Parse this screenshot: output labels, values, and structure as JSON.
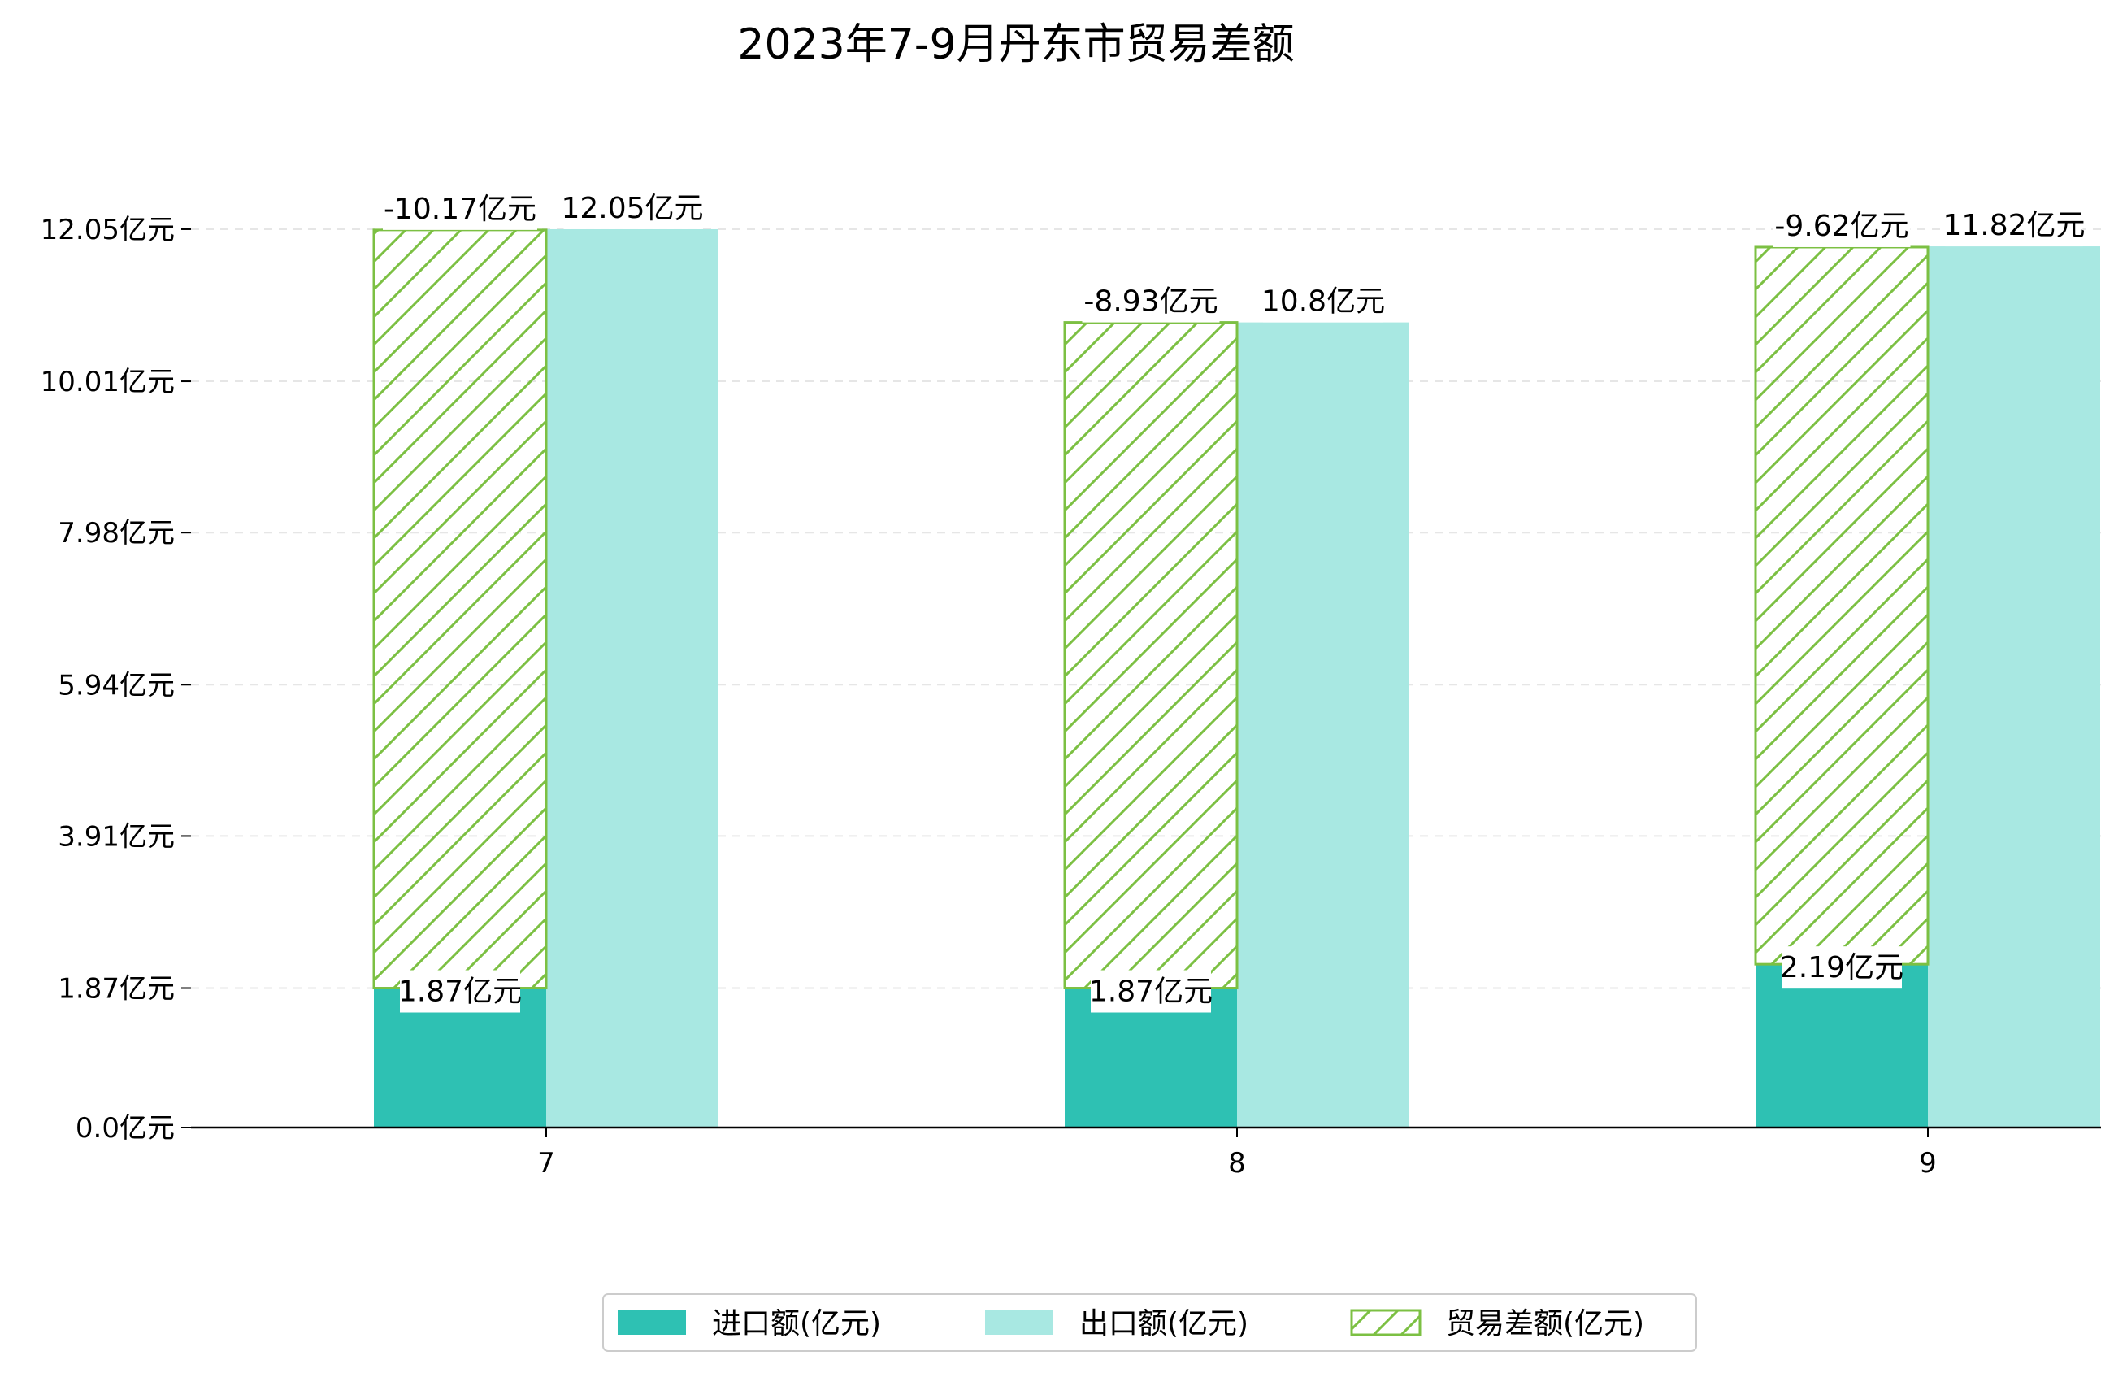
{
  "chart_data": {
    "type": "bar",
    "title": "2023年7-9月丹东市贸易差额",
    "xlabel": "",
    "ylabel": "",
    "categories": [
      "7",
      "8",
      "9"
    ],
    "ylim": [
      0,
      13.38
    ],
    "yticks": [
      {
        "value": 0.0,
        "label": "0.0亿元"
      },
      {
        "value": 1.87,
        "label": "1.87亿元"
      },
      {
        "value": 3.91,
        "label": "3.91亿元"
      },
      {
        "value": 5.94,
        "label": "5.94亿元"
      },
      {
        "value": 7.98,
        "label": "7.98亿元"
      },
      {
        "value": 10.01,
        "label": "10.01亿元"
      },
      {
        "value": 12.05,
        "label": "12.05亿元"
      }
    ],
    "grid": "horizontal dashed",
    "legend_position": "bottom-center",
    "series": [
      {
        "name": "进口额(亿元)",
        "values": [
          1.87,
          1.87,
          2.19
        ],
        "labels": [
          "1.87亿元",
          "1.87亿元",
          "2.19亿元"
        ],
        "color": "#2EC1B3"
      },
      {
        "name": "出口额(亿元)",
        "values": [
          12.05,
          10.8,
          11.82
        ],
        "labels": [
          "12.05亿元",
          "10.8亿元",
          "11.82亿元"
        ],
        "color": "#A8E8E2"
      },
      {
        "name": "贸易差额(亿元)",
        "values": [
          -10.17,
          -8.93,
          -9.62
        ],
        "labels": [
          "-10.17亿元",
          "-8.93亿元",
          "-9.62亿元"
        ],
        "color": "#7CC043",
        "pattern": "hatched"
      }
    ]
  }
}
